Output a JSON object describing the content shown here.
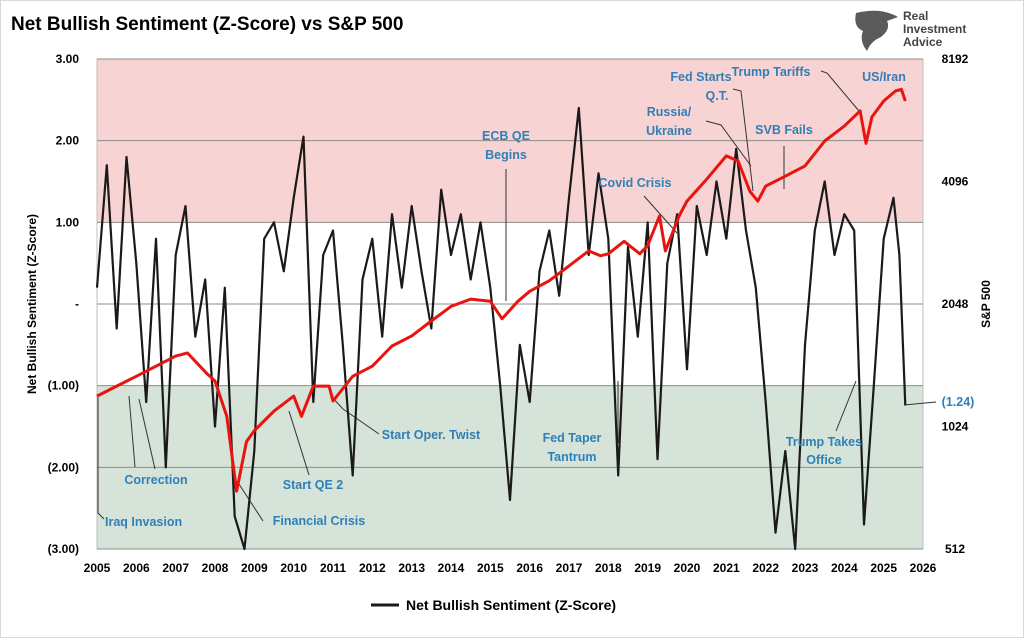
{
  "logo": {
    "text": [
      "Real",
      "Investment",
      "Advice"
    ]
  },
  "chart_data": {
    "type": "line",
    "title": "Net Bullish Sentiment (Z-Score) vs S&P 500",
    "ylabel": "Net Bullish Sentiment (Z-Score)",
    "y2label": "S&P 500",
    "ylim": [
      -3,
      3
    ],
    "y2lim": [
      512,
      8192
    ],
    "y2scale": "log2",
    "xlim": [
      2005,
      2026
    ],
    "grid": true,
    "legend_position": "bottom",
    "x_tick_labels": [
      "2005",
      "2006",
      "2007",
      "2008",
      "2009",
      "2010",
      "2011",
      "2012",
      "2013",
      "2014",
      "2015",
      "2016",
      "2017",
      "2018",
      "2019",
      "2020",
      "2021",
      "2022",
      "2023",
      "2024",
      "2025",
      "2026"
    ],
    "y_tick_labels": [
      "3.00",
      "2.00",
      "1.00",
      "-",
      "(1.00)",
      "(2.00)",
      "(3.00)"
    ],
    "y2_tick_labels": [
      "8192",
      "4096",
      "2048",
      "1024",
      "512"
    ],
    "bands": [
      {
        "from": 1,
        "to": 3,
        "color": "#f8d3d3"
      },
      {
        "from": -3,
        "to": -1,
        "color": "#d6e3d8"
      }
    ],
    "series": [
      {
        "name": "Net Bullish Sentiment (Z-Score)",
        "axis": "left",
        "color": "#1a1a1a",
        "x": [
          2005,
          2005.25,
          2005.5,
          2005.75,
          2006,
          2006.25,
          2006.5,
          2006.75,
          2007,
          2007.25,
          2007.5,
          2007.75,
          2008,
          2008.25,
          2008.5,
          2008.75,
          2009,
          2009.25,
          2009.5,
          2009.75,
          2010,
          2010.25,
          2010.5,
          2010.75,
          2011,
          2011.25,
          2011.5,
          2011.75,
          2012,
          2012.25,
          2012.5,
          2012.75,
          2013,
          2013.25,
          2013.5,
          2013.75,
          2014,
          2014.25,
          2014.5,
          2014.75,
          2015,
          2015.25,
          2015.5,
          2015.75,
          2016,
          2016.25,
          2016.5,
          2016.75,
          2017,
          2017.25,
          2017.5,
          2017.75,
          2018,
          2018.25,
          2018.5,
          2018.75,
          2019,
          2019.25,
          2019.5,
          2019.75,
          2020,
          2020.25,
          2020.5,
          2020.75,
          2021,
          2021.25,
          2021.5,
          2021.75,
          2022,
          2022.25,
          2022.5,
          2022.75,
          2023,
          2023.25,
          2023.5,
          2023.75,
          2024,
          2024.25,
          2024.5,
          2024.75,
          2025,
          2025.25,
          2025.4,
          2025.55
        ],
        "values": [
          0.2,
          1.7,
          -0.3,
          1.8,
          0.5,
          -1.2,
          0.8,
          -2.0,
          0.6,
          1.2,
          -0.4,
          0.3,
          -1.5,
          0.2,
          -2.6,
          -3.0,
          -1.8,
          0.8,
          1.0,
          0.4,
          1.3,
          2.05,
          -1.2,
          0.6,
          0.9,
          -0.5,
          -2.1,
          0.3,
          0.8,
          -0.4,
          1.1,
          0.2,
          1.2,
          0.4,
          -0.3,
          1.4,
          0.6,
          1.1,
          0.3,
          1.0,
          0.2,
          -1.0,
          -2.4,
          -0.5,
          -1.2,
          0.4,
          0.9,
          0.1,
          1.3,
          2.4,
          0.6,
          1.6,
          0.8,
          -2.1,
          0.7,
          -0.4,
          1.0,
          -1.9,
          0.5,
          1.1,
          -0.8,
          1.2,
          0.6,
          1.5,
          0.8,
          1.9,
          0.9,
          0.2,
          -1.2,
          -2.8,
          -1.8,
          -3.0,
          -0.5,
          0.9,
          1.5,
          0.6,
          1.1,
          0.9,
          -2.7,
          -1.0,
          0.8,
          1.3,
          0.6,
          -1.24
        ]
      },
      {
        "name": "S&P 500",
        "axis": "right",
        "color": "#e8140f",
        "x": [
          2005,
          2005.5,
          2006,
          2006.5,
          2007,
          2007.3,
          2007.8,
          2008,
          2008.3,
          2008.55,
          2008.8,
          2009,
          2009.5,
          2010,
          2010.2,
          2010.5,
          2010.9,
          2011,
          2011.5,
          2012,
          2012.5,
          2013,
          2013.5,
          2014,
          2014.5,
          2015,
          2015.3,
          2015.7,
          2016,
          2016.5,
          2017,
          2017.5,
          2017.8,
          2018,
          2018.4,
          2018.8,
          2019,
          2019.3,
          2019.45,
          2019.8,
          2020,
          2020.5,
          2021,
          2021.3,
          2021.6,
          2021.8,
          2022,
          2022.5,
          2023,
          2023.5,
          2024,
          2024.4,
          2024.55,
          2024.7,
          2025,
          2025.3,
          2025.45,
          2025.55
        ],
        "values": [
          1216,
          1287,
          1360,
          1440,
          1525,
          1552,
          1380,
          1325,
          1085,
          710,
          940,
          1000,
          1117,
          1216,
          1085,
          1287,
          1287,
          1183,
          1360,
          1440,
          1615,
          1710,
          1860,
          2020,
          2105,
          2080,
          1883,
          2080,
          2200,
          2336,
          2540,
          2765,
          2690,
          2720,
          2920,
          2720,
          2850,
          3370,
          2765,
          3370,
          3665,
          4150,
          4735,
          4600,
          3875,
          3665,
          3990,
          4220,
          4475,
          5150,
          5605,
          6108,
          5080,
          5900,
          6460,
          6835,
          6900,
          6460
        ]
      }
    ],
    "end_label": "(1.24)",
    "annotations": [
      "Iraq Invasion",
      "Correction",
      "Financial Crisis",
      "Start QE 2",
      "Start Oper. Twist",
      "ECB QE",
      "Begins",
      "Fed Taper",
      "Tantrum",
      "Covid Crisis",
      "Russia/",
      "Ukraine",
      "Fed Starts",
      "Q.T.",
      "Trump Tariffs",
      "SVB Fails",
      "US/Iran",
      "Trump Takes",
      "Office"
    ]
  }
}
